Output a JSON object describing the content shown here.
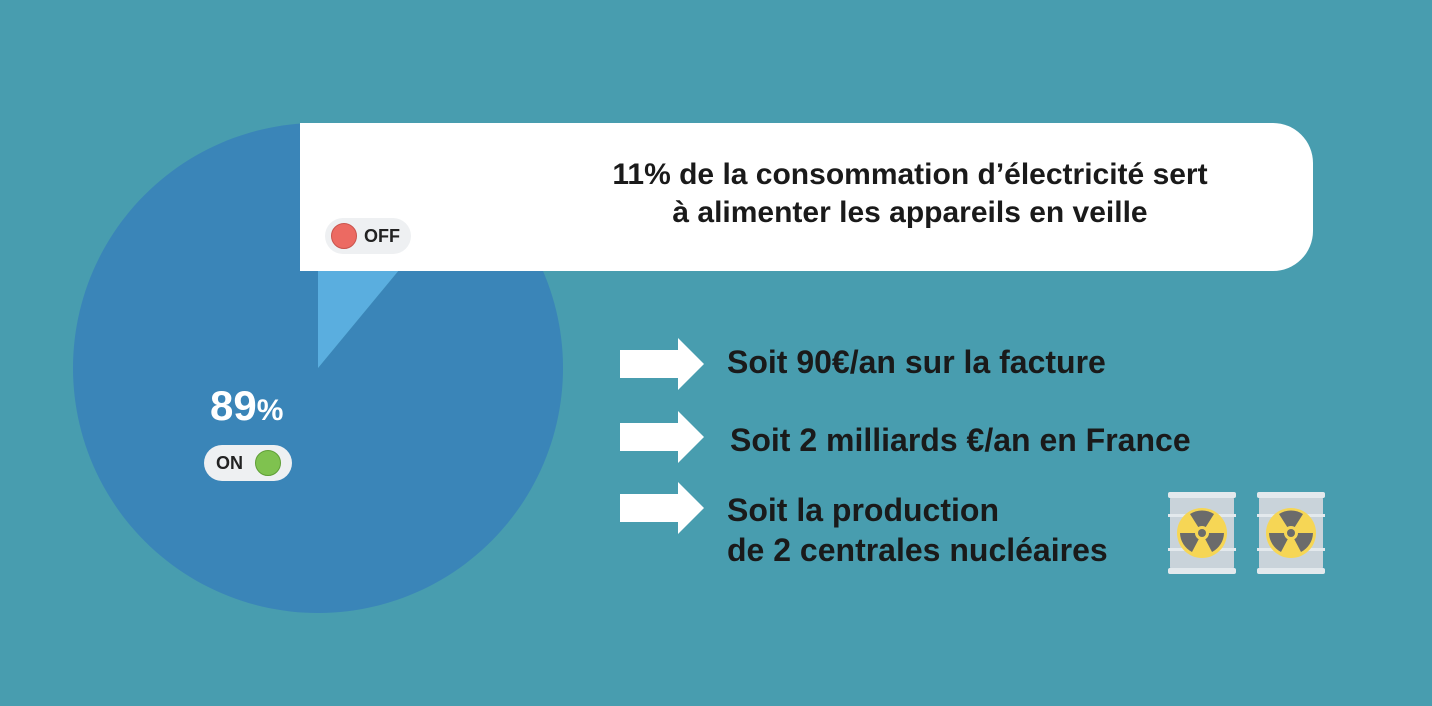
{
  "chart_data": {
    "type": "pie",
    "slices": [
      {
        "label": "11%",
        "value": 11,
        "status": "OFF",
        "color": "#5aaedf"
      },
      {
        "label": "89%",
        "value": 89,
        "status": "ON",
        "color": "#3a85b8"
      }
    ]
  },
  "slice_labels": {
    "off": {
      "number": "11",
      "symbol": "%",
      "toggle_label": "OFF"
    },
    "on": {
      "number": "89",
      "symbol": "%",
      "toggle_label": "ON"
    }
  },
  "callout": {
    "line1": "11% de la consommation d’électricité sert",
    "line2": "à alimenter les appareils en veille"
  },
  "facts": [
    {
      "line1": "Soit 90€/an sur la facture"
    },
    {
      "line1": "Soit 2 milliards €/an en France"
    },
    {
      "line1": "Soit  la production",
      "line2": "de 2 centrales nucléaires"
    }
  ],
  "icons": {
    "arrow": "right-arrow-icon",
    "barrel": "nuclear-barrel-icon"
  },
  "colors": {
    "background": "#489daf",
    "on_slice": "#3a85b8",
    "off_slice": "#5aaedf",
    "off_indicator": "#ec6a62",
    "on_indicator": "#7fc24f"
  }
}
